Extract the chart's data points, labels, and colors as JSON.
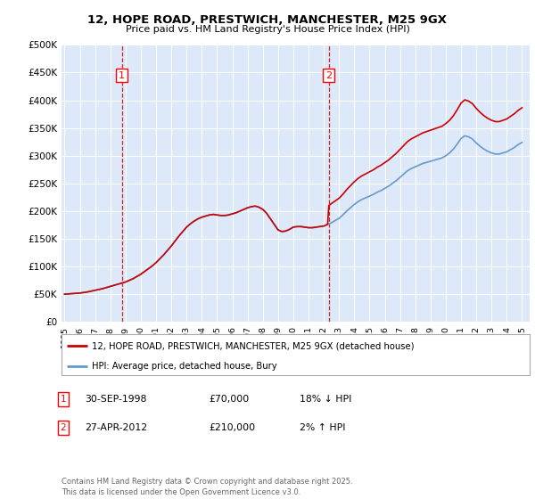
{
  "title_line1": "12, HOPE ROAD, PRESTWICH, MANCHESTER, M25 9GX",
  "title_line2": "Price paid vs. HM Land Registry's House Price Index (HPI)",
  "ylabel_ticks": [
    "£0",
    "£50K",
    "£100K",
    "£150K",
    "£200K",
    "£250K",
    "£300K",
    "£350K",
    "£400K",
    "£450K",
    "£500K"
  ],
  "ytick_values": [
    0,
    50000,
    100000,
    150000,
    200000,
    250000,
    300000,
    350000,
    400000,
    450000,
    500000
  ],
  "xlim_start": 1994.8,
  "xlim_end": 2025.5,
  "ylim_min": 0,
  "ylim_max": 500000,
  "background_color": "#dde8f8",
  "grid_color": "#ffffff",
  "sale1_date": 1998.75,
  "sale1_price": 70000,
  "sale1_label": "1",
  "sale2_date": 2012.33,
  "sale2_price": 210000,
  "sale2_label": "2",
  "legend_line1": "12, HOPE ROAD, PRESTWICH, MANCHESTER, M25 9GX (detached house)",
  "legend_line2": "HPI: Average price, detached house, Bury",
  "line_color_red": "#cc0000",
  "line_color_blue": "#6699cc",
  "hpi_x": [
    1995,
    1995.25,
    1995.5,
    1995.75,
    1996,
    1996.25,
    1996.5,
    1996.75,
    1997,
    1997.25,
    1997.5,
    1997.75,
    1998,
    1998.25,
    1998.5,
    1998.75,
    1999,
    1999.25,
    1999.5,
    1999.75,
    2000,
    2000.25,
    2000.5,
    2000.75,
    2001,
    2001.25,
    2001.5,
    2001.75,
    2002,
    2002.25,
    2002.5,
    2002.75,
    2003,
    2003.25,
    2003.5,
    2003.75,
    2004,
    2004.25,
    2004.5,
    2004.75,
    2005,
    2005.25,
    2005.5,
    2005.75,
    2006,
    2006.25,
    2006.5,
    2006.75,
    2007,
    2007.25,
    2007.5,
    2007.75,
    2008,
    2008.25,
    2008.5,
    2008.75,
    2009,
    2009.25,
    2009.5,
    2009.75,
    2010,
    2010.25,
    2010.5,
    2010.75,
    2011,
    2011.25,
    2011.5,
    2011.75,
    2012,
    2012.25,
    2012.5,
    2012.75,
    2013,
    2013.25,
    2013.5,
    2013.75,
    2014,
    2014.25,
    2014.5,
    2014.75,
    2015,
    2015.25,
    2015.5,
    2015.75,
    2016,
    2016.25,
    2016.5,
    2016.75,
    2017,
    2017.25,
    2017.5,
    2017.75,
    2018,
    2018.25,
    2018.5,
    2018.75,
    2019,
    2019.25,
    2019.5,
    2019.75,
    2020,
    2020.25,
    2020.5,
    2020.75,
    2021,
    2021.25,
    2021.5,
    2021.75,
    2022,
    2022.25,
    2022.5,
    2022.75,
    2023,
    2023.25,
    2023.5,
    2023.75,
    2024,
    2024.25,
    2024.5,
    2024.75,
    2025
  ],
  "hpi_raw": [
    50000,
    50500,
    51000,
    51500,
    52000,
    53000,
    54000,
    55500,
    57000,
    58500,
    60000,
    62000,
    64000,
    66000,
    68000,
    70000,
    72000,
    75000,
    78000,
    82000,
    86000,
    91000,
    96000,
    101000,
    107000,
    114000,
    121000,
    129000,
    137000,
    146000,
    155000,
    163000,
    171000,
    177000,
    182000,
    186000,
    189000,
    191000,
    193000,
    194000,
    193000,
    192000,
    192000,
    193000,
    195000,
    197000,
    200000,
    203000,
    206000,
    208000,
    209000,
    207000,
    203000,
    196000,
    186000,
    176000,
    166000,
    163000,
    164000,
    167000,
    171000,
    172000,
    172000,
    171000,
    170000,
    170000,
    171000,
    172000,
    173000,
    176000,
    179000,
    183000,
    187000,
    193000,
    200000,
    206000,
    212000,
    217000,
    221000,
    224000,
    227000,
    230000,
    234000,
    237000,
    241000,
    245000,
    250000,
    255000,
    261000,
    267000,
    273000,
    277000,
    280000,
    283000,
    286000,
    288000,
    290000,
    292000,
    294000,
    296000,
    300000,
    305000,
    312000,
    321000,
    331000,
    336000,
    334000,
    330000,
    323000,
    317000,
    312000,
    308000,
    305000,
    303000,
    303000,
    305000,
    307000,
    311000,
    315000,
    320000,
    324000
  ],
  "footer": "Contains HM Land Registry data © Crown copyright and database right 2025.\nThis data is licensed under the Open Government Licence v3.0."
}
